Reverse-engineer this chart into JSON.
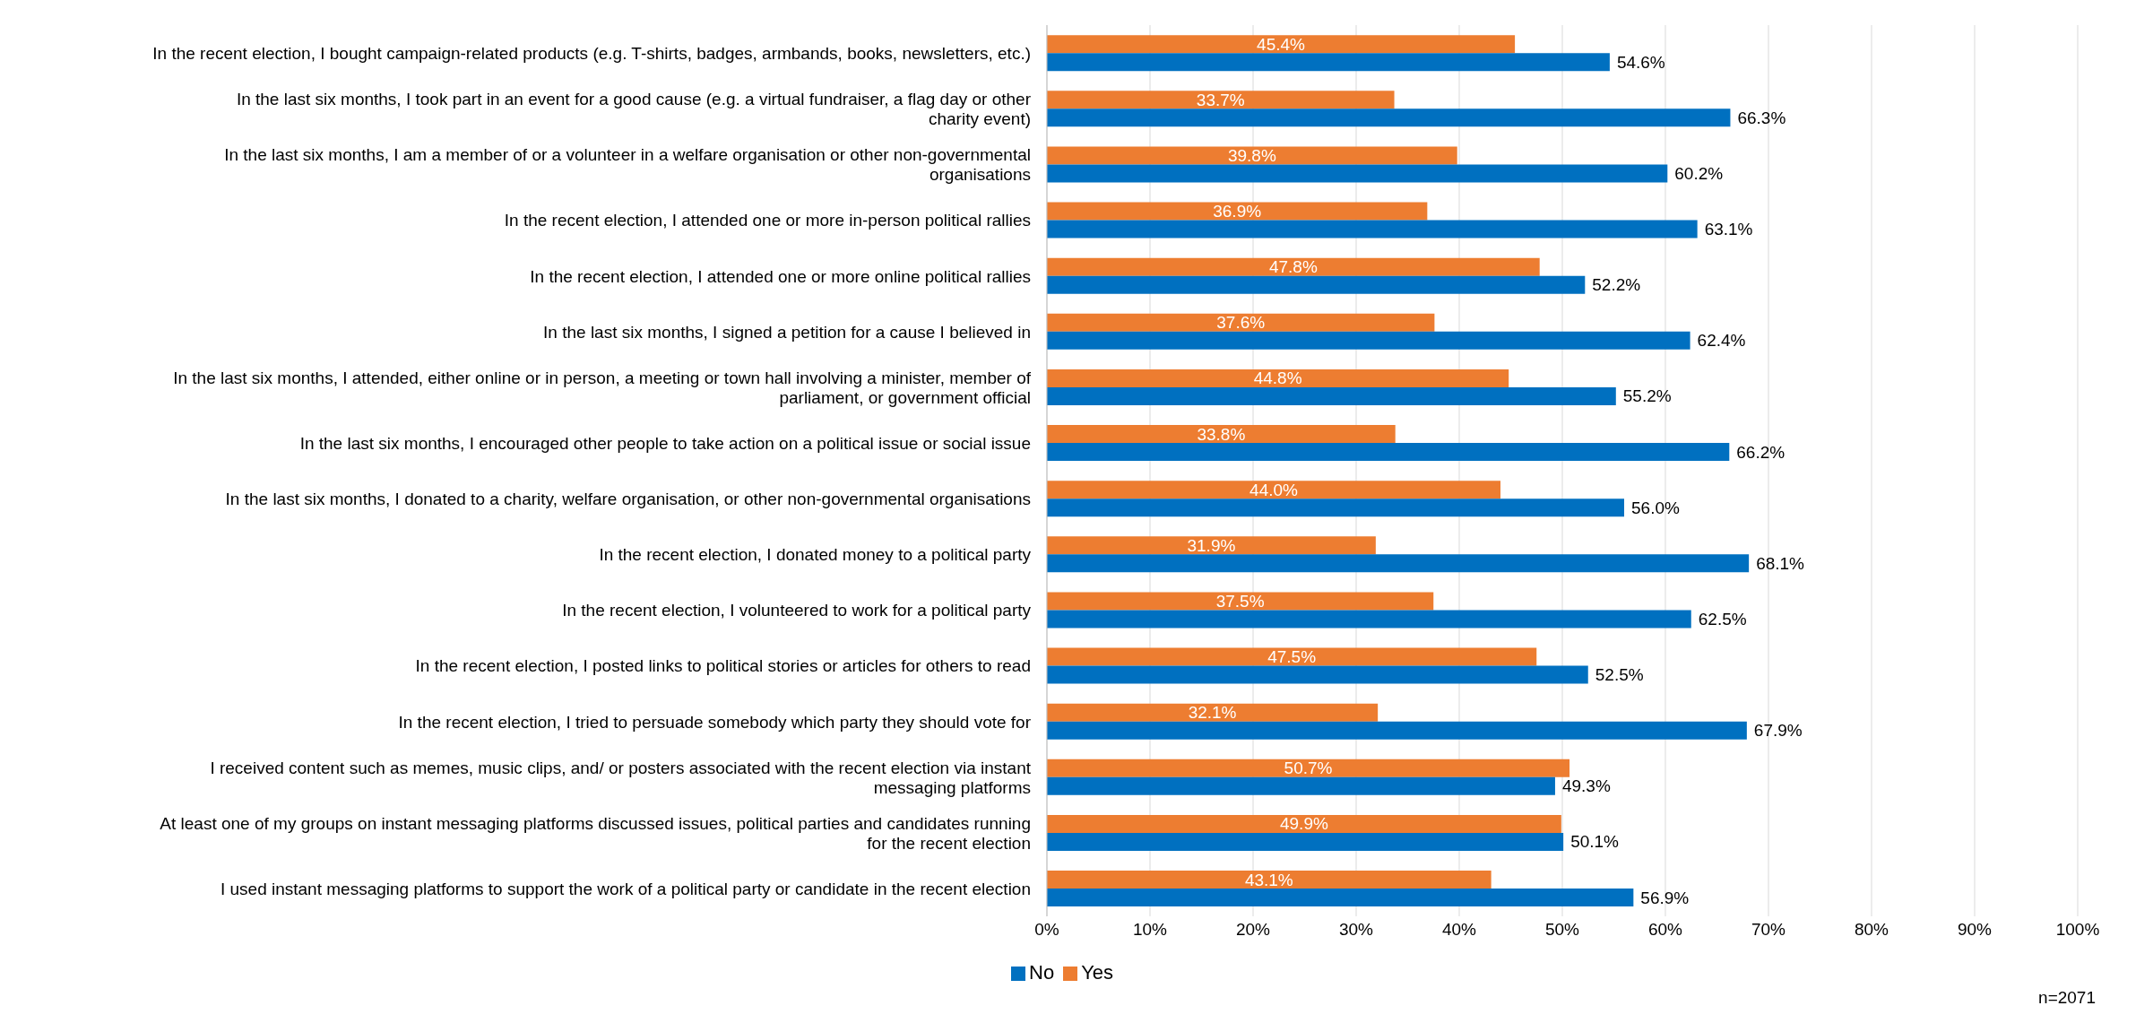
{
  "chart_data": {
    "type": "bar",
    "orientation": "horizontal",
    "categories": [
      "In the recent election, I bought campaign-related products (e.g. T-shirts, badges, armbands, books, newsletters, etc.)",
      "In the last six months, I took part in an event for a good cause (e.g. a virtual fundraiser, a flag day or other charity event)",
      "In the last six months, I am a member of or a volunteer in a welfare organisation or other non-governmental organisations",
      "In the recent election, I attended one or more in-person political rallies",
      "In the recent election, I attended one or more online political rallies",
      "In the last six months, I signed a petition for a cause I believed in",
      "In the last six months, I attended, either online or in person, a meeting or town hall involving a minister, member of parliament, or government official",
      "In the last six months, I encouraged other people to take action on a political issue or social issue",
      "In the last six months, I donated to a charity, welfare organisation, or other non-governmental organisations",
      "In the recent election, I donated money to a political party",
      "In the recent election, I volunteered to work for a political party",
      "In the recent election, I posted links to political stories or articles for others to read",
      "In the recent election, I tried to persuade somebody which party they should vote for",
      "I received content such as memes, music clips, and/ or posters associated with the recent election via instant messaging platforms",
      "At least one of my groups on instant messaging platforms discussed issues, political parties and candidates running for the recent election",
      "I used instant messaging platforms to support the work of a political party or candidate in the recent election"
    ],
    "series": [
      {
        "name": "Yes",
        "color": "#ed7d31",
        "values": [
          45.4,
          33.7,
          39.8,
          36.9,
          47.8,
          37.6,
          44.8,
          33.8,
          44.0,
          31.9,
          37.5,
          47.5,
          32.1,
          50.7,
          49.9,
          43.1
        ],
        "value_labels": [
          "45.4%",
          "33.7%",
          "39.8%",
          "36.9%",
          "47.8%",
          "37.6%",
          "44.8%",
          "33.8%",
          "44.0%",
          "31.9%",
          "37.5%",
          "47.5%",
          "32.1%",
          "50.7%",
          "49.9%",
          "43.1%"
        ]
      },
      {
        "name": "No",
        "color": "#0070c0",
        "values": [
          54.6,
          66.3,
          60.2,
          63.1,
          52.2,
          62.4,
          55.2,
          66.2,
          56.0,
          68.1,
          62.5,
          52.5,
          67.9,
          49.3,
          50.1,
          56.9
        ],
        "value_labels": [
          "54.6%",
          "66.3%",
          "60.2%",
          "63.1%",
          "52.2%",
          "62.4%",
          "55.2%",
          "66.2%",
          "56.0%",
          "68.1%",
          "62.5%",
          "52.5%",
          "67.9%",
          "49.3%",
          "50.1%",
          "56.9%"
        ]
      }
    ],
    "xlim": [
      0,
      100
    ],
    "xticks": [
      {
        "value": 0,
        "label": "0%"
      },
      {
        "value": 10,
        "label": "10%"
      },
      {
        "value": 20,
        "label": "20%"
      },
      {
        "value": 30,
        "label": "30%"
      },
      {
        "value": 40,
        "label": "40%"
      },
      {
        "value": 50,
        "label": "50%"
      },
      {
        "value": 60,
        "label": "60%"
      },
      {
        "value": 70,
        "label": "70%"
      },
      {
        "value": 80,
        "label": "80%"
      },
      {
        "value": 90,
        "label": "90%"
      },
      {
        "value": 100,
        "label": "100%"
      }
    ],
    "grid": "x",
    "legend": "bottom",
    "annotations": [
      "n=2071"
    ]
  }
}
